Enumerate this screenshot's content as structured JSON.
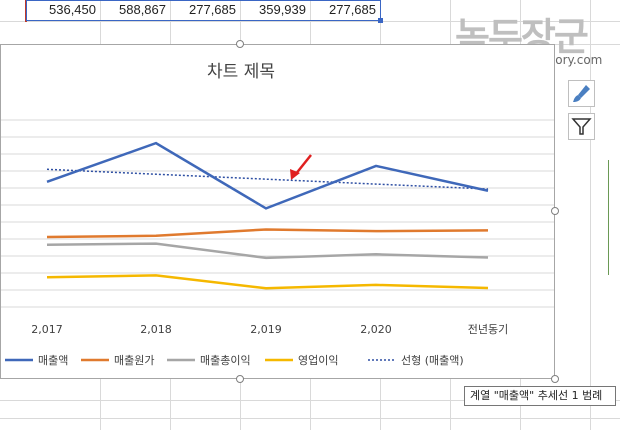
{
  "spreadsheet": {
    "top_row_values": [
      "536,450",
      "588,867",
      "277,685",
      "359,939",
      "277,685"
    ]
  },
  "watermark": {
    "title": "녹두장군",
    "url": "http://mainia.tistory.com"
  },
  "tooltip": {
    "text": "계열 \"매출액\" 추세선 1 범례"
  },
  "side_buttons": [
    {
      "icon": "brush-icon"
    },
    {
      "icon": "filter-icon"
    }
  ],
  "colors": {
    "sales": "#3f68b9",
    "cost": "#e07a2e",
    "gross_profit": "#a6a6a6",
    "operating_profit": "#f5b800",
    "trendline": "#2e4fa3",
    "arrow": "#e02020"
  },
  "chart_data": {
    "type": "line",
    "title": "차트 제목",
    "categories": [
      "2,017",
      "2,018",
      "2,019",
      "2,020",
      "전년동기"
    ],
    "series": [
      {
        "name": "매출액",
        "values": [
          536450,
          764000,
          380000,
          630000,
          484000
        ]
      },
      {
        "name": "매출원가",
        "values": [
          212000,
          219000,
          256000,
          246000,
          251000
        ]
      },
      {
        "name": "매출총이익",
        "values": [
          166000,
          173000,
          89000,
          110000,
          91000
        ]
      },
      {
        "name": "영업이익",
        "values": [
          -25000,
          -14000,
          -90000,
          -70000,
          -88000
        ]
      }
    ],
    "trendline": {
      "name": "선형 (매출액)",
      "of_series": "매출액",
      "values": [
        610000,
        581000,
        552000,
        523000,
        494000
      ]
    },
    "ylim": [
      -200000,
      1000000
    ],
    "grid": true,
    "legend_position": "bottom"
  }
}
